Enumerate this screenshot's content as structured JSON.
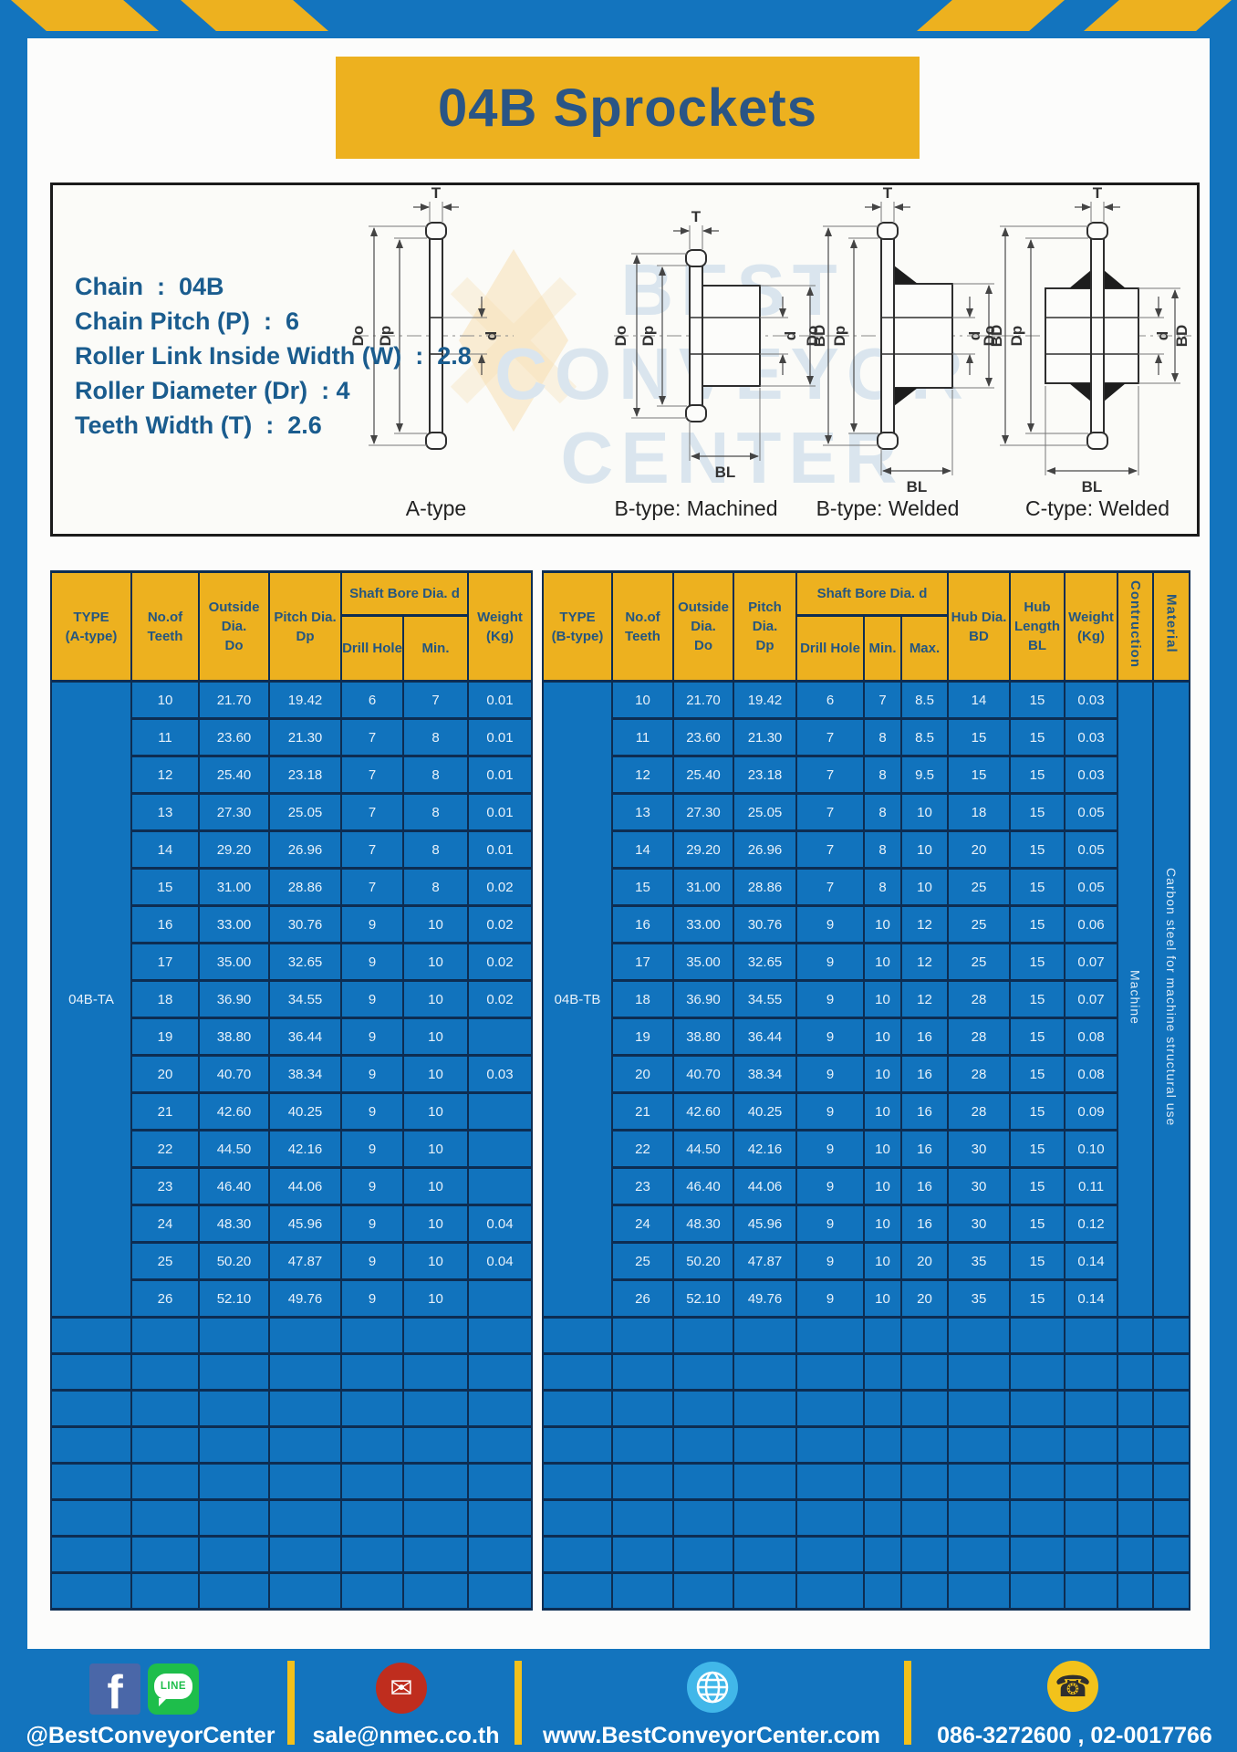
{
  "page": {
    "title": "04B Sprockets"
  },
  "specs": {
    "lines": [
      "Chain  :  04B",
      "Chain Pitch (P)  :  6",
      "Roller Link Inside Width (W)  :  2.8",
      "Roller Diameter (Dr)  : 4",
      "Teeth Width (T)  :  2.6"
    ]
  },
  "diagram": {
    "dims": {
      "t": "T",
      "do": "Do",
      "dp": "Dp",
      "d": "d",
      "bd": "BD",
      "bl": "BL"
    },
    "type_labels": [
      "A-type",
      "B-type: Machined",
      "B-type: Welded",
      "C-type: Welded"
    ],
    "watermark": [
      "BEST",
      "CONVEYOR",
      "CENTER"
    ]
  },
  "table_a": {
    "headers": {
      "type": "TYPE\n(A-type)",
      "teeth": "No.of\nTeeth",
      "outside": "Outside\nDia.\nDo",
      "pitch": "Pitch Dia.\nDp",
      "shaft_bore": "Shaft Bore Dia. d",
      "drill": "Drill Hole",
      "min": "Min.",
      "weight": "Weight\n(Kg)"
    },
    "type_label": "04B-TA",
    "rows": [
      [
        "10",
        "21.70",
        "19.42",
        "6",
        "7",
        "0.01"
      ],
      [
        "11",
        "23.60",
        "21.30",
        "7",
        "8",
        "0.01"
      ],
      [
        "12",
        "25.40",
        "23.18",
        "7",
        "8",
        "0.01"
      ],
      [
        "13",
        "27.30",
        "25.05",
        "7",
        "8",
        "0.01"
      ],
      [
        "14",
        "29.20",
        "26.96",
        "7",
        "8",
        "0.01"
      ],
      [
        "15",
        "31.00",
        "28.86",
        "7",
        "8",
        "0.02"
      ],
      [
        "16",
        "33.00",
        "30.76",
        "9",
        "10",
        "0.02"
      ],
      [
        "17",
        "35.00",
        "32.65",
        "9",
        "10",
        "0.02"
      ],
      [
        "18",
        "36.90",
        "34.55",
        "9",
        "10",
        "0.02"
      ],
      [
        "19",
        "38.80",
        "36.44",
        "9",
        "10",
        ""
      ],
      [
        "20",
        "40.70",
        "38.34",
        "9",
        "10",
        "0.03"
      ],
      [
        "21",
        "42.60",
        "40.25",
        "9",
        "10",
        ""
      ],
      [
        "22",
        "44.50",
        "42.16",
        "9",
        "10",
        ""
      ],
      [
        "23",
        "46.40",
        "44.06",
        "9",
        "10",
        ""
      ],
      [
        "24",
        "48.30",
        "45.96",
        "9",
        "10",
        "0.04"
      ],
      [
        "25",
        "50.20",
        "47.87",
        "9",
        "10",
        "0.04"
      ],
      [
        "26",
        "52.10",
        "49.76",
        "9",
        "10",
        ""
      ]
    ],
    "empty_rows": 8
  },
  "table_b": {
    "headers": {
      "type": "TYPE\n(B-type)",
      "teeth": "No.of\nTeeth",
      "outside": "Outside\nDia.\nDo",
      "pitch": "Pitch Dia.\nDp",
      "shaft_bore": "Shaft Bore Dia. d",
      "drill": "Drill Hole",
      "min": "Min.",
      "max": "Max.",
      "hub_dia": "Hub Dia.\nBD",
      "hub_length": "Hub\nLength\nBL",
      "weight": "Weight\n(Kg)",
      "construction": "Contruction",
      "material": "Material"
    },
    "type_label": "04B-TB",
    "construction": "Machine",
    "material": "Carbon steel for machine structural use",
    "rows": [
      [
        "10",
        "21.70",
        "19.42",
        "6",
        "7",
        "8.5",
        "14",
        "15",
        "0.03"
      ],
      [
        "11",
        "23.60",
        "21.30",
        "7",
        "8",
        "8.5",
        "15",
        "15",
        "0.03"
      ],
      [
        "12",
        "25.40",
        "23.18",
        "7",
        "8",
        "9.5",
        "15",
        "15",
        "0.03"
      ],
      [
        "13",
        "27.30",
        "25.05",
        "7",
        "8",
        "10",
        "18",
        "15",
        "0.05"
      ],
      [
        "14",
        "29.20",
        "26.96",
        "7",
        "8",
        "10",
        "20",
        "15",
        "0.05"
      ],
      [
        "15",
        "31.00",
        "28.86",
        "7",
        "8",
        "10",
        "25",
        "15",
        "0.05"
      ],
      [
        "16",
        "33.00",
        "30.76",
        "9",
        "10",
        "12",
        "25",
        "15",
        "0.06"
      ],
      [
        "17",
        "35.00",
        "32.65",
        "9",
        "10",
        "12",
        "25",
        "15",
        "0.07"
      ],
      [
        "18",
        "36.90",
        "34.55",
        "9",
        "10",
        "12",
        "28",
        "15",
        "0.07"
      ],
      [
        "19",
        "38.80",
        "36.44",
        "9",
        "10",
        "16",
        "28",
        "15",
        "0.08"
      ],
      [
        "20",
        "40.70",
        "38.34",
        "9",
        "10",
        "16",
        "28",
        "15",
        "0.08"
      ],
      [
        "21",
        "42.60",
        "40.25",
        "9",
        "10",
        "16",
        "28",
        "15",
        "0.09"
      ],
      [
        "22",
        "44.50",
        "42.16",
        "9",
        "10",
        "16",
        "30",
        "15",
        "0.10"
      ],
      [
        "23",
        "46.40",
        "44.06",
        "9",
        "10",
        "16",
        "30",
        "15",
        "0.11"
      ],
      [
        "24",
        "48.30",
        "45.96",
        "9",
        "10",
        "16",
        "30",
        "15",
        "0.12"
      ],
      [
        "25",
        "50.20",
        "47.87",
        "9",
        "10",
        "20",
        "35",
        "15",
        "0.14"
      ],
      [
        "26",
        "52.10",
        "49.76",
        "9",
        "10",
        "20",
        "35",
        "15",
        "0.14"
      ]
    ],
    "empty_rows": 8
  },
  "footer": {
    "social": "@BestConveyorCenter",
    "email": "sale@nmec.co.th",
    "website": "www.BestConveyorCenter.com",
    "phones": "086-3272600 , 02-0017766",
    "icons": {
      "facebook_glyph": "f",
      "line_glyph": "LINE",
      "mail_glyph": "✉",
      "phone_glyph": "☎"
    }
  },
  "colors": {
    "frame_blue": "#1374BE",
    "cell_blue": "#1173BD",
    "accent_yellow": "#EDB11F",
    "border_navy": "#0D2D52",
    "header_text_blue": "#25567F"
  }
}
